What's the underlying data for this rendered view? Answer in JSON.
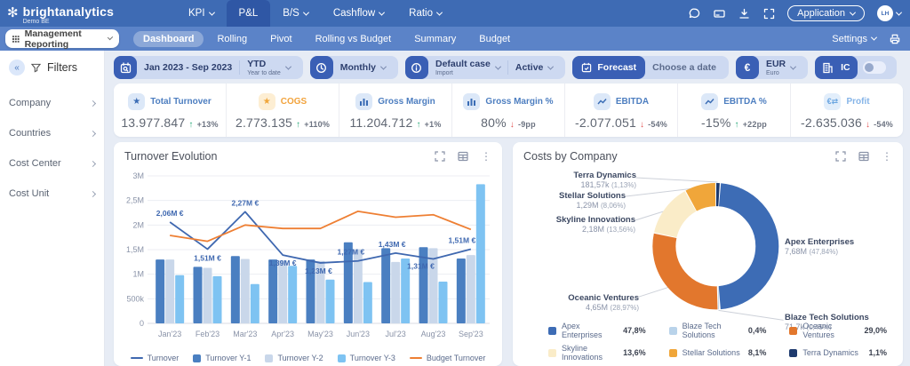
{
  "header": {
    "brand": {
      "name": "brightanalytics",
      "subtitle": "Demo BE",
      "logo_icon": "flower-icon"
    },
    "nav": [
      {
        "label": "KPI",
        "dropdown": true,
        "active": false
      },
      {
        "label": "P&L",
        "dropdown": false,
        "active": true
      },
      {
        "label": "B/S",
        "dropdown": true,
        "active": false
      },
      {
        "label": "Cashflow",
        "dropdown": true,
        "active": false
      },
      {
        "label": "Ratio",
        "dropdown": true,
        "active": false
      }
    ],
    "application_label": "Application",
    "avatar_initials": "LH"
  },
  "subnav": {
    "workspace": "Management Reporting",
    "tabs": [
      "Dashboard",
      "Rolling",
      "Pivot",
      "Rolling vs Budget",
      "Summary",
      "Budget"
    ],
    "active_tab": "Dashboard",
    "settings_label": "Settings"
  },
  "toolbar": {
    "date_range": "Jan 2023 - Sep 2023",
    "period_mode": "YTD",
    "period_mode_sub": "Year to date",
    "frequency": "Monthly",
    "case_label": "Default case",
    "case_sub": "Import",
    "status": "Active",
    "forecast_label": "Forecast",
    "choose_date_label": "Choose a date",
    "currency": "EUR",
    "currency_sub": "Euro",
    "ic_label": "IC",
    "ic_toggle_on": false
  },
  "filters": {
    "title": "Filters",
    "items": [
      "Company",
      "Countries",
      "Cost Center",
      "Cost Unit"
    ]
  },
  "kpis": [
    {
      "label": "Total Turnover",
      "value": "13.977.847",
      "delta": "+13%",
      "direction": "up",
      "icon": "star",
      "accent": "#4d7ec0",
      "icon_bg": "#dce8f8",
      "icon_color": "#3a6cb5"
    },
    {
      "label": "COGS",
      "value": "2.773.135",
      "delta": "+110%",
      "direction": "up",
      "icon": "star",
      "accent": "#f2a33c",
      "icon_bg": "#fdeed3",
      "icon_color": "#f0a63a"
    },
    {
      "label": "Gross Margin",
      "value": "11.204.712",
      "delta": "+1%",
      "direction": "up",
      "icon": "bar-chart",
      "accent": "#4d7ec0",
      "icon_bg": "#dce8f8",
      "icon_color": "#3a6cb5"
    },
    {
      "label": "Gross Margin %",
      "value": "80%",
      "delta": "-9pp",
      "direction": "down",
      "icon": "bar-chart",
      "accent": "#4d7ec0",
      "icon_bg": "#dce8f8",
      "icon_color": "#3a6cb5"
    },
    {
      "label": "EBITDA",
      "value": "-2.077.051",
      "delta": "-54%",
      "direction": "down",
      "icon": "line-chart",
      "accent": "#4d7ec0",
      "icon_bg": "#dce8f8",
      "icon_color": "#3a6cb5"
    },
    {
      "label": "EBITDA %",
      "value": "-15%",
      "delta": "+22pp",
      "direction": "up",
      "icon": "line-chart",
      "accent": "#4d7ec0",
      "icon_bg": "#dce8f8",
      "icon_color": "#3a6cb5"
    },
    {
      "label": "Profit",
      "value": "-2.635.036",
      "delta": "-54%",
      "direction": "down",
      "icon": "money",
      "accent": "#85b4e8",
      "icon_bg": "#e2eefb",
      "icon_color": "#6aa5e0"
    }
  ],
  "kpi_colors": {
    "up": "#27a878",
    "down": "#e04f4f"
  },
  "chart_data": [
    {
      "type": "bar+line",
      "title": "Turnover Evolution",
      "categories": [
        "Jan'23",
        "Feb'23",
        "Mar'23",
        "Apr'23",
        "May'23",
        "Jun'23",
        "Jul'23",
        "Aug'23",
        "Sep'23"
      ],
      "unit": "M EUR",
      "ylim": [
        0,
        3
      ],
      "ytick_labels": [
        "0",
        "500k",
        "1M",
        "1,5M",
        "2M",
        "2,5M",
        "3M"
      ],
      "grid": true,
      "legend_position": "bottom",
      "series": [
        {
          "name": "Turnover",
          "type": "line",
          "color": "#3f68b0",
          "values": [
            2.06,
            1.51,
            2.27,
            1.39,
            1.23,
            1.27,
            1.43,
            1.31,
            1.51
          ],
          "point_labels": [
            "2,06M €",
            "1,51M €",
            "2,27M €",
            "1,39M €",
            "1,23M €",
            "1,27M €",
            "1,43M €",
            "1,31M €",
            "1,51M €"
          ]
        },
        {
          "name": "Turnover Y-1",
          "type": "bar",
          "color": "#4a7fc1",
          "values": [
            1.3,
            1.15,
            1.37,
            1.3,
            1.3,
            1.65,
            1.53,
            1.55,
            1.32
          ]
        },
        {
          "name": "Turnover Y-2",
          "type": "bar",
          "color": "#c9d7ea",
          "values": [
            1.3,
            1.13,
            1.31,
            1.28,
            1.27,
            1.51,
            1.25,
            1.53,
            1.39
          ]
        },
        {
          "name": "Turnover Y-3",
          "type": "bar",
          "color": "#7ec3f2",
          "values": [
            0.98,
            0.96,
            0.8,
            1.17,
            0.89,
            0.84,
            1.32,
            0.85,
            2.83
          ]
        },
        {
          "name": "Budget Turnover",
          "type": "line",
          "color": "#ee7f33",
          "values": [
            1.79,
            1.67,
            2.0,
            1.93,
            1.93,
            2.28,
            2.16,
            2.21,
            1.91
          ]
        }
      ]
    },
    {
      "type": "donut",
      "title": "Costs by Company",
      "slices": [
        {
          "name": "Terra Dynamics",
          "value_label": "181,57k",
          "pct": 1.13,
          "pct_label": "(1,13%)",
          "legend_pct": "1,1%",
          "color": "#1e3a6e"
        },
        {
          "name": "Apex Enterprises",
          "value_label": "7,68M",
          "pct": 47.84,
          "pct_label": "(47,84%)",
          "legend_pct": "47,8%",
          "color": "#3d6cb5"
        },
        {
          "name": "Blaze Tech Solutions",
          "value_label": "71,7k",
          "pct": 0.45,
          "pct_label": "(0,45%)",
          "legend_pct": "0,4%",
          "color": "#b9d3ea"
        },
        {
          "name": "Oceanic Ventures",
          "value_label": "4,65M",
          "pct": 28.97,
          "pct_label": "(28,97%)",
          "legend_pct": "29,0%",
          "color": "#e2772d"
        },
        {
          "name": "Skyline Innovations",
          "value_label": "2,18M",
          "pct": 13.56,
          "pct_label": "(13,56%)",
          "legend_pct": "13,6%",
          "color": "#faecc8"
        },
        {
          "name": "Stellar Solutions",
          "value_label": "1,29M",
          "pct": 8.06,
          "pct_label": "(8,06%)",
          "legend_pct": "8,1%",
          "color": "#f0a63a"
        }
      ],
      "legend_order": [
        "Apex Enterprises",
        "Blaze Tech Solutions",
        "Oceanic Ventures",
        "Skyline Innovations",
        "Stellar Solutions",
        "Terra Dynamics"
      ]
    }
  ]
}
